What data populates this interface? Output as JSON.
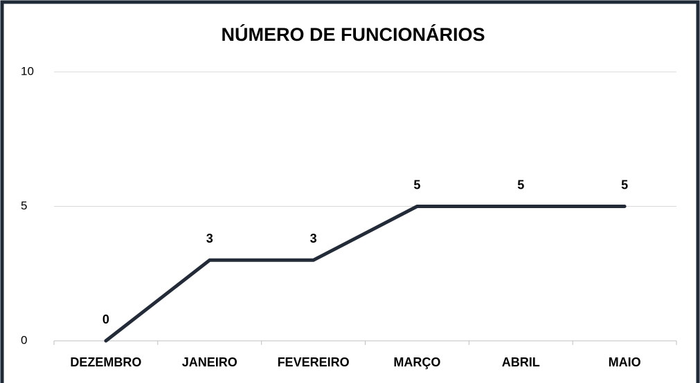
{
  "chart_data": {
    "type": "line",
    "title": "NÚMERO DE FUNCIONÁRIOS",
    "categories": [
      "DEZEMBRO",
      "JANEIRO",
      "FEVEREIRO",
      "MARÇO",
      "ABRIL",
      "MAIO"
    ],
    "values": [
      0,
      3,
      3,
      5,
      5,
      5
    ],
    "color": "#232b38",
    "ylim": [
      0,
      10
    ],
    "yticks": [
      0,
      5,
      10
    ],
    "grid": true
  }
}
